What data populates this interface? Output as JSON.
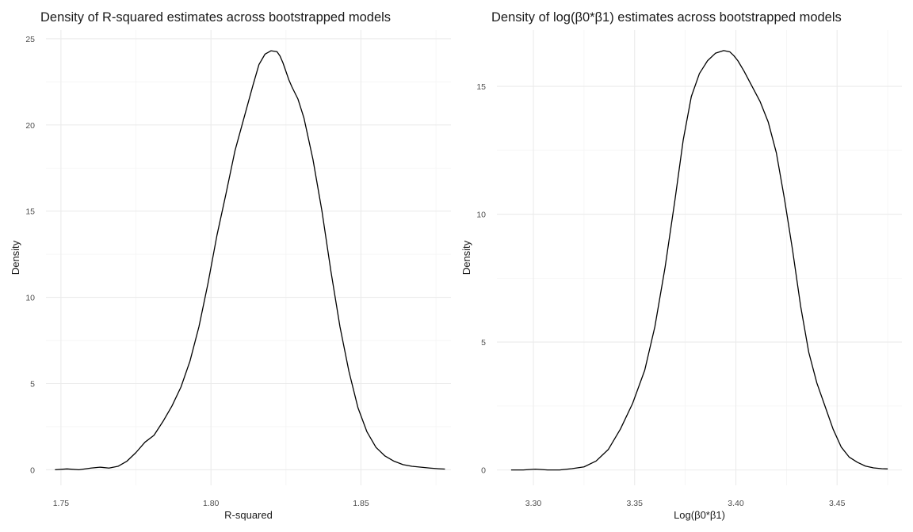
{
  "chart_data": [
    {
      "type": "line",
      "title": "Density of R-squared estimates across bootstrapped models",
      "xlabel": "R-squared",
      "ylabel": "Density",
      "xlim": [
        1.745,
        1.88
      ],
      "ylim": [
        -0.9,
        25.5
      ],
      "xticks": [
        1.75,
        1.8,
        1.85
      ],
      "xtick_labels": [
        "1.75",
        "1.80",
        "1.85"
      ],
      "yticks": [
        0,
        5,
        10,
        15,
        20,
        25
      ],
      "ytick_labels": [
        "0",
        "5",
        "10",
        "15",
        "20",
        "25"
      ],
      "grid": true,
      "legend": "none",
      "series": [
        {
          "x": [
            1.748,
            1.752,
            1.756,
            1.76,
            1.763,
            1.766,
            1.769,
            1.772,
            1.775,
            1.778,
            1.781,
            1.784,
            1.787,
            1.79,
            1.793,
            1.796,
            1.799,
            1.802,
            1.805,
            1.808,
            1.811,
            1.814,
            1.816,
            1.818,
            1.82,
            1.822,
            1.823,
            1.824,
            1.825,
            1.826,
            1.827,
            1.829,
            1.831,
            1.834,
            1.837,
            1.84,
            1.843,
            1.846,
            1.849,
            1.852,
            1.855,
            1.858,
            1.861,
            1.864,
            1.867,
            1.87,
            1.873,
            1.876,
            1.878
          ],
          "y": [
            0.0,
            0.05,
            0.0,
            0.1,
            0.15,
            0.1,
            0.2,
            0.5,
            1.0,
            1.6,
            2.0,
            2.8,
            3.7,
            4.8,
            6.3,
            8.3,
            10.8,
            13.6,
            16.0,
            18.5,
            20.4,
            22.3,
            23.5,
            24.1,
            24.3,
            24.25,
            24.0,
            23.6,
            23.1,
            22.6,
            22.2,
            21.5,
            20.4,
            18.0,
            15.0,
            11.5,
            8.3,
            5.7,
            3.6,
            2.2,
            1.3,
            0.8,
            0.5,
            0.3,
            0.2,
            0.15,
            0.1,
            0.06,
            0.04
          ]
        }
      ]
    },
    {
      "type": "line",
      "title": "Density of log(β0*β1) estimates across bootstrapped models",
      "xlabel": "Log(β0*β1)",
      "ylabel": "Density",
      "xlim": [
        3.282,
        3.482
      ],
      "ylim": [
        -0.6,
        17.2
      ],
      "xticks": [
        3.3,
        3.35,
        3.4,
        3.45
      ],
      "xtick_labels": [
        "3.30",
        "3.35",
        "3.40",
        "3.45"
      ],
      "yticks": [
        0,
        5,
        10,
        15
      ],
      "ytick_labels": [
        "0",
        "5",
        "10",
        "15"
      ],
      "grid": true,
      "legend": "none",
      "series": [
        {
          "x": [
            3.289,
            3.295,
            3.301,
            3.307,
            3.313,
            3.319,
            3.325,
            3.331,
            3.337,
            3.343,
            3.349,
            3.355,
            3.36,
            3.365,
            3.37,
            3.374,
            3.378,
            3.382,
            3.386,
            3.39,
            3.394,
            3.397,
            3.399,
            3.401,
            3.404,
            3.408,
            3.412,
            3.416,
            3.42,
            3.424,
            3.428,
            3.432,
            3.436,
            3.44,
            3.444,
            3.448,
            3.452,
            3.456,
            3.46,
            3.464,
            3.468,
            3.472,
            3.475
          ],
          "y": [
            0.0,
            0.0,
            0.03,
            0.0,
            0.0,
            0.05,
            0.12,
            0.35,
            0.8,
            1.6,
            2.6,
            3.9,
            5.6,
            7.9,
            10.6,
            12.9,
            14.6,
            15.5,
            16.0,
            16.3,
            16.4,
            16.35,
            16.2,
            16.0,
            15.6,
            15.0,
            14.4,
            13.6,
            12.4,
            10.6,
            8.6,
            6.4,
            4.6,
            3.4,
            2.5,
            1.6,
            0.9,
            0.5,
            0.3,
            0.15,
            0.08,
            0.05,
            0.04
          ]
        }
      ]
    }
  ]
}
